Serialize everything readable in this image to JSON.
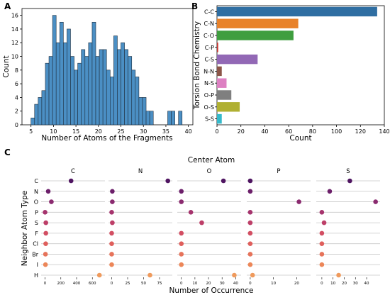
{
  "panels": {
    "a": "A",
    "b": "B",
    "c": "C"
  },
  "chart_data": [
    {
      "type": "bar",
      "panel": "A",
      "xlabel": "Number of Atoms of the Fragments",
      "ylabel": "Count",
      "xlim": [
        3,
        41
      ],
      "ylim": [
        0,
        17
      ],
      "xticks": [
        5,
        10,
        15,
        20,
        25,
        30,
        35,
        40
      ],
      "yticks": [
        0,
        2,
        4,
        6,
        8,
        10,
        12,
        14,
        16
      ],
      "bin_width": 0.8,
      "x": [
        5.0,
        5.8,
        6.6,
        7.4,
        8.2,
        9.0,
        9.8,
        10.6,
        11.4,
        12.2,
        13.0,
        13.8,
        14.6,
        15.4,
        16.2,
        17.0,
        17.8,
        18.6,
        19.4,
        20.2,
        21.0,
        21.8,
        22.6,
        23.4,
        24.2,
        25.0,
        25.8,
        26.6,
        27.4,
        28.2,
        29.0,
        29.8,
        30.6,
        31.4,
        35.4,
        36.2,
        37.8
      ],
      "values": [
        1,
        3,
        4,
        5,
        9,
        10,
        16,
        12,
        15,
        12,
        14,
        10,
        8,
        9,
        11,
        10,
        12,
        15,
        10,
        11,
        11,
        8,
        7,
        13,
        11,
        12,
        11,
        10,
        8,
        7,
        4,
        4,
        2,
        2,
        2,
        2,
        2
      ],
      "color": "#4b8fc4"
    },
    {
      "type": "bar",
      "orientation": "horizontal",
      "panel": "B",
      "xlabel": "Count",
      "ylabel": "Torsion Bond Chemistry",
      "xlim": [
        0,
        140
      ],
      "xticks": [
        0,
        20,
        40,
        60,
        80,
        100,
        120,
        140
      ],
      "categories": [
        "C-C",
        "C-N",
        "C-O",
        "C-P",
        "C-S",
        "N-N",
        "N-S",
        "O-P",
        "O-S",
        "S-S"
      ],
      "values": [
        134,
        68,
        64,
        1,
        34,
        4,
        8,
        12,
        19,
        4
      ],
      "colors": [
        "#2f6ea2",
        "#e8822a",
        "#3f9e3f",
        "#c8322d",
        "#9268b5",
        "#8c5648",
        "#dd80c2",
        "#7f7f7f",
        "#b0b032",
        "#35b9ca"
      ]
    },
    {
      "type": "scatter",
      "panel": "C",
      "title": "Center Atom",
      "xlabel": "Number of Occurrence",
      "ylabel": "Neighbor Atom Type",
      "rows": [
        "C",
        "N",
        "O",
        "P",
        "S",
        "F",
        "Cl",
        "Br",
        "I",
        "H"
      ],
      "row_colors": [
        "#4f1561",
        "#6c1f6a",
        "#8a2a6f",
        "#a5336d",
        "#bd3f68",
        "#d24e62",
        "#df5f5c",
        "#e6735a",
        "#ec8658",
        "#ef9a5c"
      ],
      "subplots": [
        {
          "title": "C",
          "xlim": [
            -50,
            760
          ],
          "xticks": [
            0,
            200,
            400,
            600
          ],
          "values": [
            330,
            40,
            80,
            0,
            10,
            10,
            8,
            5,
            5,
            690
          ]
        },
        {
          "title": "N",
          "xlim": [
            -5,
            95
          ],
          "xticks": [
            0,
            25,
            50,
            75
          ],
          "values": [
            88,
            1,
            1,
            0,
            1,
            0,
            0,
            0,
            0,
            60
          ]
        },
        {
          "title": "O",
          "xlim": [
            -3,
            44
          ],
          "xticks": [
            0,
            10,
            20,
            30,
            40
          ],
          "values": [
            31,
            0,
            0,
            7,
            15,
            0,
            0,
            0,
            0,
            39
          ]
        },
        {
          "title": "P",
          "xlim": [
            -1.5,
            26
          ],
          "xticks": [
            0,
            10,
            20
          ],
          "values": [
            0,
            0,
            21,
            0,
            0,
            0,
            0,
            0,
            0,
            1
          ]
        },
        {
          "title": "S",
          "xlim": [
            -5,
            52
          ],
          "xticks": [
            0,
            10,
            20,
            30,
            40
          ],
          "values": [
            25,
            7,
            48,
            0,
            2,
            0,
            0,
            0,
            0,
            15
          ]
        }
      ]
    }
  ]
}
